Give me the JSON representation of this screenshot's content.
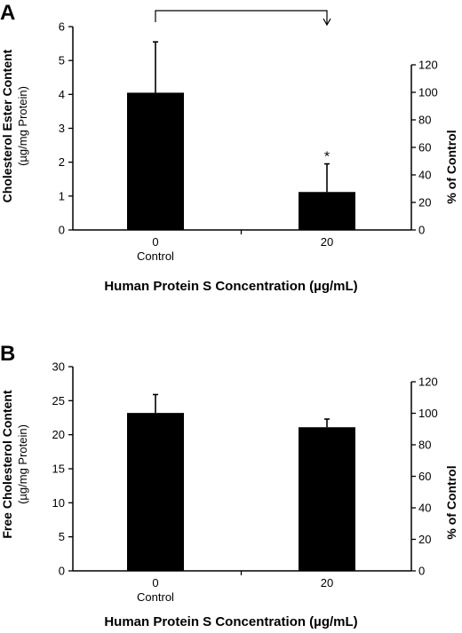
{
  "chart_data": [
    {
      "type": "bar",
      "panel_label": "A",
      "categories": [
        "0",
        "20"
      ],
      "category_sublabels": [
        "Control",
        ""
      ],
      "values": [
        4.05,
        1.12
      ],
      "error_bars": [
        1.5,
        0.83
      ],
      "annotations": [
        "",
        "*"
      ],
      "ylabel": "Cholesterol Ester Content",
      "ylabel_unit": "(µg/mg Protein)",
      "y2label": "% of Control",
      "xlabel": "Human Protein S Concentration (µg/mL)",
      "ylim": [
        0,
        6
      ],
      "yticks": [
        "0",
        "1",
        "2",
        "3",
        "4",
        "5",
        "6"
      ],
      "y2lim": [
        0,
        120
      ],
      "y2ticks": [
        "0",
        "20",
        "40",
        "60",
        "80",
        "100",
        "120"
      ],
      "comparison_bracket": true,
      "grid": false
    },
    {
      "type": "bar",
      "panel_label": "B",
      "categories": [
        "0",
        "20"
      ],
      "category_sublabels": [
        "Control",
        ""
      ],
      "values": [
        23.2,
        21.1
      ],
      "error_bars": [
        2.7,
        1.2
      ],
      "annotations": [
        "",
        ""
      ],
      "ylabel": "Free Cholesterol Content",
      "ylabel_unit": "(µg/mg Protein)",
      "y2label": "% of Control",
      "xlabel": "Human Protein S Concentration (µg/mL)",
      "ylim": [
        0,
        30
      ],
      "yticks": [
        "0",
        "5",
        "10",
        "15",
        "20",
        "25",
        "30"
      ],
      "y2lim": [
        0,
        120
      ],
      "y2ticks": [
        "0",
        "20",
        "40",
        "60",
        "80",
        "100",
        "120"
      ],
      "comparison_bracket": false,
      "grid": false
    }
  ]
}
